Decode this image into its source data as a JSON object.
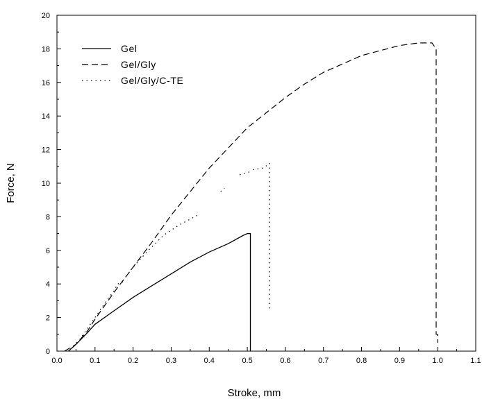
{
  "chart_data": {
    "type": "line",
    "xlabel": "Stroke, mm",
    "ylabel": "Force, N",
    "xlim": [
      0.0,
      1.1
    ],
    "ylim": [
      0,
      20
    ],
    "x_ticks": [
      "0.0",
      "0.1",
      "0.2",
      "0.3",
      "0.4",
      "0.5",
      "0.6",
      "0.7",
      "0.8",
      "0.9",
      "1.0",
      "1.1"
    ],
    "y_ticks": [
      "0",
      "2",
      "4",
      "6",
      "8",
      "10",
      "12",
      "14",
      "16",
      "18",
      "20"
    ],
    "grid": false,
    "legend_position": "top-left",
    "series": [
      {
        "name": "Gel",
        "style": "solid",
        "color": "#000000",
        "points": [
          [
            0.03,
            0.0
          ],
          [
            0.05,
            0.4
          ],
          [
            0.08,
            1.1
          ],
          [
            0.1,
            1.6
          ],
          [
            0.15,
            2.4
          ],
          [
            0.2,
            3.2
          ],
          [
            0.25,
            3.9
          ],
          [
            0.3,
            4.6
          ],
          [
            0.35,
            5.3
          ],
          [
            0.4,
            5.9
          ],
          [
            0.45,
            6.4
          ],
          [
            0.49,
            6.9
          ],
          [
            0.5,
            7.0
          ],
          [
            0.508,
            7.0
          ],
          [
            0.508,
            0.0
          ]
        ]
      },
      {
        "name": "Gel/Gly",
        "style": "dashed",
        "color": "#000000",
        "points": [
          [
            0.02,
            0.0
          ],
          [
            0.05,
            0.4
          ],
          [
            0.08,
            1.2
          ],
          [
            0.1,
            1.9
          ],
          [
            0.15,
            3.5
          ],
          [
            0.2,
            5.0
          ],
          [
            0.25,
            6.5
          ],
          [
            0.3,
            8.1
          ],
          [
            0.35,
            9.5
          ],
          [
            0.4,
            10.9
          ],
          [
            0.45,
            12.1
          ],
          [
            0.5,
            13.3
          ],
          [
            0.55,
            14.2
          ],
          [
            0.6,
            15.1
          ],
          [
            0.65,
            15.9
          ],
          [
            0.7,
            16.6
          ],
          [
            0.75,
            17.1
          ],
          [
            0.8,
            17.6
          ],
          [
            0.85,
            17.9
          ],
          [
            0.9,
            18.2
          ],
          [
            0.95,
            18.35
          ],
          [
            0.985,
            18.35
          ],
          [
            0.996,
            18.0
          ],
          [
            0.996,
            1.0
          ],
          [
            1.0,
            1.0
          ],
          [
            1.0,
            0.5
          ]
        ]
      },
      {
        "name": "Gel/Gly/C-TE",
        "style": "dotted",
        "color": "#000000",
        "segments": [
          [
            [
              0.035,
              0.1
            ],
            [
              0.06,
              0.7
            ],
            [
              0.1,
              2.0
            ],
            [
              0.13,
              3.0
            ],
            [
              0.15,
              3.6
            ],
            [
              0.16,
              4.0
            ],
            [
              0.18,
              4.2
            ]
          ],
          [
            [
              0.18,
              4.4
            ],
            [
              0.2,
              5.0
            ],
            [
              0.24,
              6.0
            ],
            [
              0.28,
              6.9
            ],
            [
              0.32,
              7.5
            ],
            [
              0.37,
              8.1
            ]
          ],
          [
            [
              0.43,
              9.5
            ],
            [
              0.44,
              9.7
            ]
          ],
          [
            [
              0.48,
              10.5
            ],
            [
              0.51,
              10.7
            ]
          ],
          [
            [
              0.515,
              10.8
            ],
            [
              0.54,
              10.9
            ],
            [
              0.555,
              11.1
            ]
          ],
          [
            [
              0.558,
              11.2
            ],
            [
              0.558,
              2.5
            ]
          ]
        ]
      }
    ]
  }
}
